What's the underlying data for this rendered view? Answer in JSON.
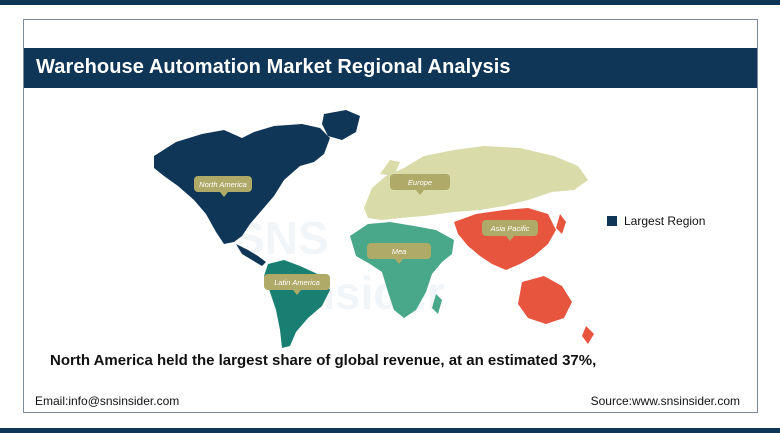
{
  "title": "Warehouse Automation Market Regional Analysis",
  "legend": {
    "label": "Largest Region",
    "color": "#0f3557"
  },
  "regions": [
    {
      "name": "North America",
      "color": "#0f3557",
      "largest": true
    },
    {
      "name": "Europe",
      "color": "#d9dca8",
      "largest": false
    },
    {
      "name": "Asia Pacific",
      "color": "#e7553f",
      "largest": false
    },
    {
      "name": "Mea",
      "color": "#4aa88a",
      "largest": false
    },
    {
      "name": "Latin America",
      "color": "#1a7f73",
      "largest": false
    }
  ],
  "caption": "North America held the largest share of global revenue, at an estimated 37%,",
  "footer": {
    "email": "Email:info@snsinsider.com",
    "source": "Source:www.snsinsider.com"
  },
  "colors": {
    "brand": "#0f3557",
    "label_bubble": "#b0aa68"
  }
}
